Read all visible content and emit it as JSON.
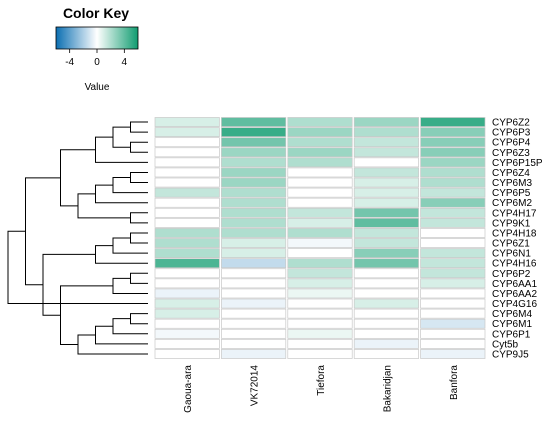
{
  "chart_data": {
    "type": "heatmap",
    "color_key": {
      "title": "Color Key",
      "ticks": [
        "-4",
        "0",
        "4"
      ],
      "tick_values": [
        -4,
        0,
        4
      ],
      "range": [
        -6,
        6
      ],
      "label": "Value",
      "colors": {
        "low": "#0b6fb2",
        "mid": "#ffffff",
        "high": "#109c70"
      }
    },
    "columns": [
      "Gaoua-ara",
      "VK72014",
      "Tiefora",
      "Bakaridjan",
      "Banfora"
    ],
    "rows": [
      "CYP6Z2",
      "CYP6P3",
      "CYP6P4",
      "CYP6Z3",
      "CYP6P15P",
      "CYP6Z4",
      "CYP6M3",
      "CYP6P5",
      "CYP6M2",
      "CYP4H17",
      "CYP9K1",
      "CYP4H18",
      "CYP6Z1",
      "CYP6N1",
      "CYP4H16",
      "CYP6P2",
      "CYP6AA1",
      "CYP6AA2",
      "CYP4G16",
      "CYP6M4",
      "CYP6M1",
      "CYP6P1",
      "Cyt5b",
      "CYP9J5"
    ],
    "values": [
      [
        1.0,
        4.0,
        2.0,
        2.5,
        5.0
      ],
      [
        1.0,
        5.0,
        2.5,
        2.0,
        3.0
      ],
      [
        0.0,
        3.5,
        2.0,
        1.5,
        3.0
      ],
      [
        0.0,
        2.5,
        2.5,
        1.5,
        3.0
      ],
      [
        0.0,
        2.0,
        2.0,
        0.0,
        2.5
      ],
      [
        0.0,
        2.5,
        0.0,
        1.5,
        2.0
      ],
      [
        0.0,
        2.5,
        0.0,
        1.0,
        2.0
      ],
      [
        1.5,
        2.0,
        0.0,
        1.0,
        1.5
      ],
      [
        0.0,
        2.0,
        0.0,
        1.0,
        3.0
      ],
      [
        0.0,
        2.0,
        1.5,
        3.5,
        1.5
      ],
      [
        0.0,
        2.0,
        1.0,
        4.0,
        1.5
      ],
      [
        2.0,
        2.0,
        2.0,
        1.5,
        0.0
      ],
      [
        2.0,
        1.0,
        -0.3,
        1.5,
        0.0
      ],
      [
        2.0,
        1.0,
        0.0,
        3.0,
        1.5
      ],
      [
        4.5,
        -1.5,
        2.0,
        3.5,
        1.5
      ],
      [
        0.0,
        0.0,
        1.5,
        0.0,
        1.5
      ],
      [
        0.0,
        0.0,
        1.0,
        0.0,
        1.0
      ],
      [
        -0.5,
        0.0,
        0.5,
        0.0,
        0.0
      ],
      [
        1.0,
        -0.5,
        0.0,
        1.0,
        0.0
      ],
      [
        1.0,
        0.0,
        0.0,
        0.0,
        0.0
      ],
      [
        0.0,
        0.0,
        0.0,
        0.0,
        -1.0
      ],
      [
        -0.3,
        0.0,
        0.5,
        0.0,
        0.0
      ],
      [
        0.0,
        0.0,
        0.0,
        -0.5,
        0.0
      ],
      [
        0.0,
        -0.5,
        0.0,
        0.0,
        -0.5
      ]
    ],
    "row_dendrogram": [
      [
        0,
        1
      ],
      [
        2,
        3
      ],
      [
        24,
        25
      ],
      [
        26,
        4
      ],
      [
        5,
        6
      ],
      [
        28,
        7
      ],
      [
        29,
        8
      ],
      [
        9,
        10
      ],
      [
        30,
        31
      ],
      [
        27,
        32
      ],
      [
        11,
        12
      ],
      [
        34,
        13
      ],
      [
        35,
        14
      ],
      [
        15,
        16
      ],
      [
        37,
        17
      ],
      [
        19,
        20
      ],
      [
        39,
        21
      ],
      [
        40,
        22
      ],
      [
        41,
        23
      ],
      [
        38,
        42
      ],
      [
        36,
        43
      ],
      [
        33,
        44
      ]
    ],
    "row_dendrogram_root": [
      0,
      1
    ]
  }
}
